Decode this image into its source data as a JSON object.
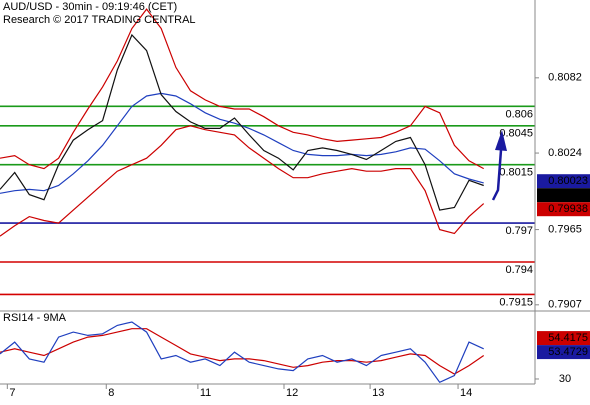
{
  "chart_data": [
    {
      "type": "line",
      "title": "AUD/USD - 30min - 09:19:46 (CET)",
      "subtitle": "Research © 2017 TRADING CENTRAL",
      "x": [
        0,
        8,
        16,
        24,
        32,
        40,
        48,
        56,
        64,
        72,
        80,
        88,
        96,
        104,
        112,
        120,
        128,
        136,
        144,
        152,
        160,
        168,
        176,
        184,
        192,
        200,
        208,
        216,
        224,
        232,
        240,
        248,
        256,
        264
      ],
      "xlim": [
        0,
        292
      ],
      "ylim": [
        0.7903,
        0.8142
      ],
      "yticks": [
        0.8082,
        0.8024,
        0.7965,
        0.7907
      ],
      "series": [
        {
          "color": "#cc0000",
          "values": [
            0.802,
            0.8022,
            0.8015,
            0.8012,
            0.802,
            0.804,
            0.8058,
            0.8075,
            0.8095,
            0.812,
            0.8135,
            0.812,
            0.809,
            0.8072,
            0.8065,
            0.806,
            0.8058,
            0.8058,
            0.8052,
            0.8045,
            0.804,
            0.8038,
            0.8035,
            0.8033,
            0.8034,
            0.8035,
            0.8036,
            0.804,
            0.8045,
            0.806,
            0.8055,
            0.803,
            0.8018,
            0.8012
          ]
        },
        {
          "color": "#cc0000",
          "values": [
            0.796,
            0.7968,
            0.7975,
            0.7972,
            0.797,
            0.798,
            0.799,
            0.8,
            0.801,
            0.8015,
            0.802,
            0.803,
            0.8042,
            0.8045,
            0.8042,
            0.804,
            0.8038,
            0.8028,
            0.802,
            0.8012,
            0.8005,
            0.8005,
            0.8008,
            0.801,
            0.8012,
            0.801,
            0.801,
            0.8012,
            0.8012,
            0.7995,
            0.7965,
            0.7962,
            0.7975,
            0.7985
          ]
        },
        {
          "color": "#1f3fbf",
          "values": [
            0.7993,
            0.7995,
            0.7996,
            0.7995,
            0.7999,
            0.8008,
            0.8018,
            0.803,
            0.8045,
            0.806,
            0.8068,
            0.807,
            0.8068,
            0.8062,
            0.8055,
            0.805,
            0.8047,
            0.8043,
            0.8038,
            0.8032,
            0.8026,
            0.8023,
            0.8022,
            0.8022,
            0.8023,
            0.8022,
            0.8023,
            0.8025,
            0.8028,
            0.8027,
            0.8018,
            0.8008,
            0.8004,
            0.8001
          ]
        },
        {
          "color": "#111111",
          "values": [
            0.7996,
            0.8009,
            0.7992,
            0.7988,
            0.8015,
            0.8034,
            0.8042,
            0.8049,
            0.8088,
            0.8115,
            0.8103,
            0.8069,
            0.8056,
            0.8048,
            0.8043,
            0.8043,
            0.8051,
            0.8038,
            0.8026,
            0.802,
            0.8011,
            0.8026,
            0.8028,
            0.8026,
            0.8023,
            0.8019,
            0.8026,
            0.8033,
            0.8036,
            0.8015,
            0.798,
            0.7982,
            0.8003,
            0.7999
          ]
        }
      ],
      "levels": [
        {
          "value": 0.806,
          "color": "#1a9a1a"
        },
        {
          "value": 0.8045,
          "color": "#1a9a1a"
        },
        {
          "value": 0.8015,
          "color": "#1a9a1a"
        },
        {
          "value": 0.797,
          "color": "#1a1aa0"
        },
        {
          "value": 0.794,
          "color": "#d40000"
        },
        {
          "value": 0.7915,
          "color": "#d40000"
        }
      ],
      "tags": [
        {
          "value": 0.80023,
          "color": "#1a1aa0"
        },
        {
          "value": 0.80008,
          "color": "#000000"
        },
        {
          "value": 0.79938,
          "color": "#cc0000"
        }
      ]
    },
    {
      "type": "line",
      "title": "RSI14 - 9MA",
      "x": [
        0,
        8,
        16,
        24,
        32,
        40,
        48,
        56,
        64,
        72,
        80,
        88,
        96,
        104,
        112,
        120,
        128,
        136,
        144,
        152,
        160,
        168,
        176,
        184,
        192,
        200,
        208,
        216,
        224,
        232,
        240,
        248,
        256,
        264
      ],
      "xlim": [
        0,
        292
      ],
      "ylim": [
        27,
        70
      ],
      "yticks": [
        30
      ],
      "xticks": [
        {
          "value": 4,
          "label": "7"
        },
        {
          "value": 58,
          "label": "8"
        },
        {
          "value": 108,
          "label": "11"
        },
        {
          "value": 155,
          "label": "12"
        },
        {
          "value": 202,
          "label": "13"
        },
        {
          "value": 250,
          "label": "14"
        }
      ],
      "series": [
        {
          "color": "#cc0000",
          "values": [
            46,
            48,
            46,
            44,
            48,
            52,
            55,
            56,
            58,
            60,
            60,
            55,
            50,
            45,
            43,
            41,
            42,
            42,
            41,
            39,
            37,
            38,
            40,
            41,
            41,
            40,
            41,
            43,
            45,
            44,
            38,
            33,
            38,
            44
          ]
        },
        {
          "color": "#1f3fbf",
          "values": [
            45,
            52,
            42,
            40,
            55,
            58,
            56,
            57,
            62,
            64,
            58,
            42,
            44,
            40,
            42,
            38,
            46,
            40,
            38,
            36,
            35,
            42,
            44,
            40,
            42,
            38,
            44,
            46,
            48,
            40,
            28,
            32,
            52,
            48
          ]
        }
      ],
      "tags": [
        {
          "value": 54.4175,
          "color": "#cc0000"
        },
        {
          "value": 53.4729,
          "color": "#1a1aa0"
        }
      ]
    }
  ]
}
